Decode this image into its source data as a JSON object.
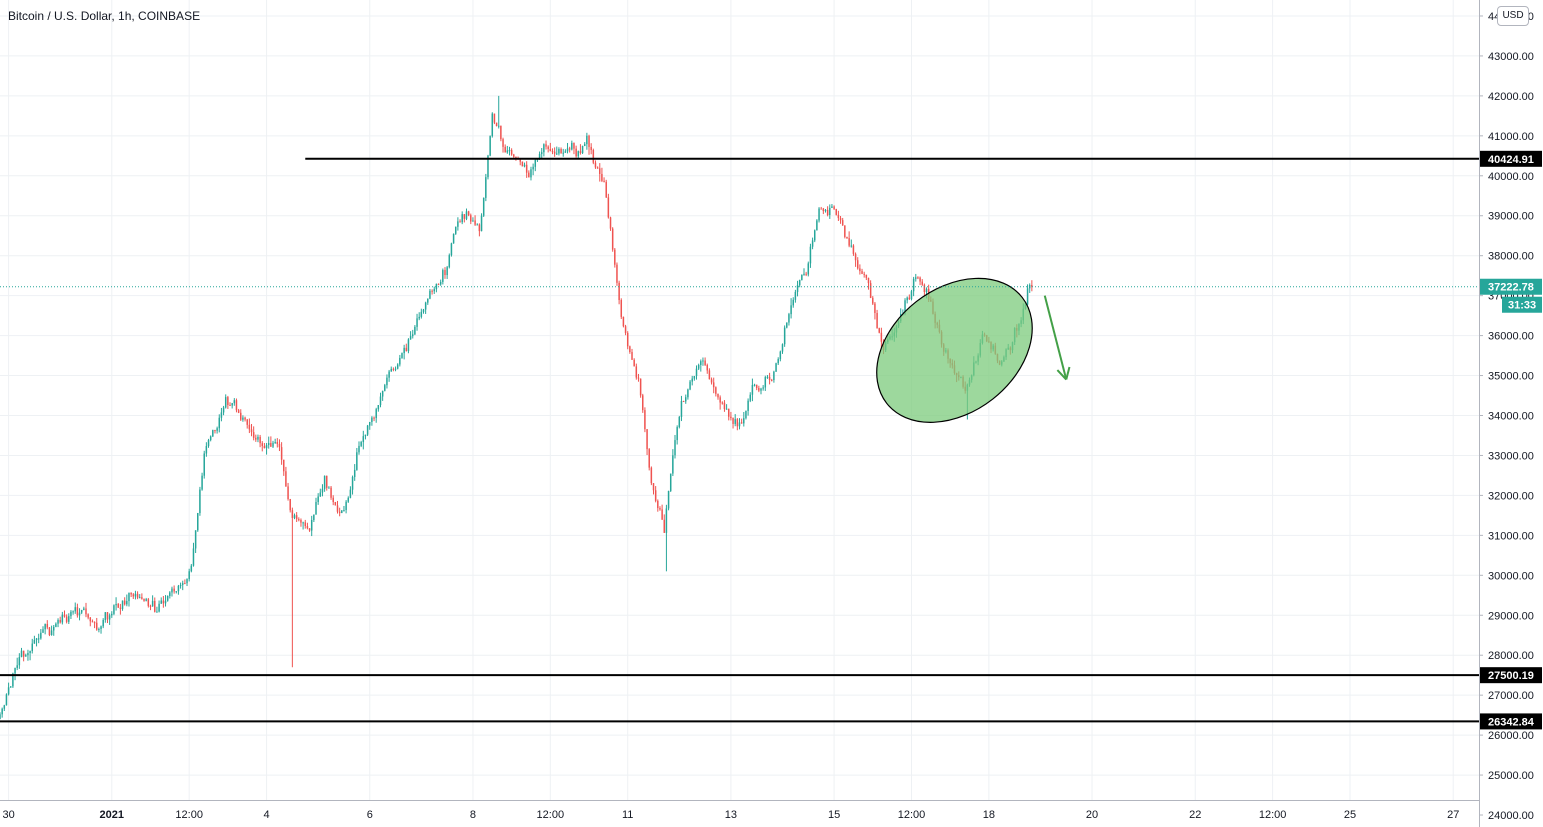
{
  "header": {
    "title": "Bitcoin / U.S. Dollar, 1h, COINBASE",
    "currency": "USD"
  },
  "colors": {
    "up": "#26a69a",
    "down": "#ef5350",
    "grid": "#eef1f4",
    "axis_text": "#131722",
    "hline": "#000000",
    "ellipse_fill": "#7ccb7c",
    "arrow": "#43a047",
    "price_line": "#26a69a"
  },
  "chart_data": {
    "type": "candlestick",
    "title": "Bitcoin / U.S. Dollar, 1h, COINBASE",
    "y_axis": {
      "ylim": [
        23700,
        44400
      ],
      "ticks": [
        24000,
        25000,
        26000,
        27000,
        28000,
        29000,
        30000,
        31000,
        32000,
        33000,
        34000,
        35000,
        36000,
        37000,
        38000,
        39000,
        40000,
        41000,
        42000,
        43000,
        44000
      ],
      "tick_labels": [
        "24000.00",
        "25000.00",
        "26000.00",
        "27000.00",
        "28000.00",
        "29000.00",
        "30000.00",
        "31000.00",
        "32000.00",
        "33000.00",
        "34000.00",
        "35000.00",
        "36000.00",
        "37000.00",
        "38000.00",
        "39000.00",
        "40000.00",
        "41000.00",
        "42000.00",
        "43000.00",
        "44000.00"
      ]
    },
    "x_axis": {
      "start": "2020-12-29T20:00",
      "end": "2021-01-27T12:00",
      "ticks": [
        {
          "t": "2020-12-30T00:00",
          "label": "30"
        },
        {
          "t": "2021-01-01T00:00",
          "label": "2021"
        },
        {
          "t": "2021-01-02T12:00",
          "label": "12:00"
        },
        {
          "t": "2021-01-04T00:00",
          "label": "4"
        },
        {
          "t": "2021-01-06T00:00",
          "label": "6"
        },
        {
          "t": "2021-01-08T00:00",
          "label": "8"
        },
        {
          "t": "2021-01-09T12:00",
          "label": "12:00"
        },
        {
          "t": "2021-01-11T00:00",
          "label": "11"
        },
        {
          "t": "2021-01-13T00:00",
          "label": "13"
        },
        {
          "t": "2021-01-15T00:00",
          "label": "15"
        },
        {
          "t": "2021-01-16T12:00",
          "label": "12:00"
        },
        {
          "t": "2021-01-18T00:00",
          "label": "18"
        },
        {
          "t": "2021-01-20T00:00",
          "label": "20"
        },
        {
          "t": "2021-01-22T00:00",
          "label": "22"
        },
        {
          "t": "2021-01-23T12:00",
          "label": "12:00"
        },
        {
          "t": "2021-01-25T00:00",
          "label": "25"
        },
        {
          "t": "2021-01-27T00:00",
          "label": "27"
        }
      ]
    },
    "series": [
      {
        "path": [
          [
            "2020-12-29T20:00",
            26400
          ],
          [
            "2020-12-30T04:00",
            27800
          ],
          [
            "2020-12-30T12:00",
            28300
          ],
          [
            "2020-12-31T00:00",
            28900
          ],
          [
            "2020-12-31T08:00",
            29200
          ],
          [
            "2020-12-31T20:00",
            28700
          ],
          [
            "2021-01-01T04:00",
            29200
          ],
          [
            "2021-01-01T12:00",
            29400
          ],
          [
            "2021-01-01T20:00",
            29100
          ],
          [
            "2021-01-02T06:00",
            29600
          ],
          [
            "2021-01-02T14:00",
            30200
          ],
          [
            "2021-01-02T20:00",
            32900
          ],
          [
            "2021-01-03T06:00",
            34300
          ],
          [
            "2021-01-03T14:00",
            34100
          ],
          [
            "2021-01-03T22:00",
            33100
          ],
          [
            "2021-01-04T06:00",
            33300
          ],
          [
            "2021-01-04T12:00",
            31600
          ],
          [
            "2021-01-04T20:00",
            31100
          ],
          [
            "2021-01-05T04:00",
            32200
          ],
          [
            "2021-01-05T12:00",
            31300
          ],
          [
            "2021-01-05T20:00",
            33200
          ],
          [
            "2021-01-06T06:00",
            34500
          ],
          [
            "2021-01-06T16:00",
            35500
          ],
          [
            "2021-01-07T02:00",
            36800
          ],
          [
            "2021-01-07T12:00",
            37600
          ],
          [
            "2021-01-07T20:00",
            39200
          ],
          [
            "2021-01-08T04:00",
            38800
          ],
          [
            "2021-01-08T10:00",
            41300
          ],
          [
            "2021-01-08T18:00",
            40500
          ],
          [
            "2021-01-09T02:00",
            40100
          ],
          [
            "2021-01-09T10:00",
            40700
          ],
          [
            "2021-01-09T20:00",
            40600
          ],
          [
            "2021-01-10T06:00",
            40800
          ],
          [
            "2021-01-10T14:00",
            39800
          ],
          [
            "2021-01-10T22:00",
            36300
          ],
          [
            "2021-01-11T06:00",
            34900
          ],
          [
            "2021-01-11T12:00",
            32500
          ],
          [
            "2021-01-11T18:00",
            31200
          ],
          [
            "2021-01-12T02:00",
            34500
          ],
          [
            "2021-01-12T12:00",
            35400
          ],
          [
            "2021-01-12T20:00",
            34200
          ],
          [
            "2021-01-13T04:00",
            33700
          ],
          [
            "2021-01-13T12:00",
            34700
          ],
          [
            "2021-01-13T20:00",
            34900
          ],
          [
            "2021-01-14T04:00",
            36600
          ],
          [
            "2021-01-14T12:00",
            37700
          ],
          [
            "2021-01-14T18:00",
            39200
          ],
          [
            "2021-01-15T00:00",
            39300
          ],
          [
            "2021-01-15T08:00",
            38200
          ],
          [
            "2021-01-15T16:00",
            37300
          ],
          [
            "2021-01-16T00:00",
            35700
          ],
          [
            "2021-01-16T08:00",
            36500
          ],
          [
            "2021-01-16T16:00",
            37600
          ],
          [
            "2021-01-17T00:00",
            36300
          ],
          [
            "2021-01-17T08:00",
            35300
          ],
          [
            "2021-01-17T14:00",
            34600
          ],
          [
            "2021-01-17T22:00",
            35900
          ],
          [
            "2021-01-18T06:00",
            35400
          ],
          [
            "2021-01-18T14:00",
            36200
          ],
          [
            "2021-01-18T20:00",
            37223
          ]
        ],
        "spikes": [
          [
            "2021-01-04T12:00",
            27700
          ],
          [
            "2021-01-11T18:00",
            30100
          ],
          [
            "2021-01-08T12:00",
            42000
          ],
          [
            "2021-01-17T14:00",
            33900
          ]
        ]
      }
    ],
    "horizontal_lines": [
      {
        "value": 40424.91,
        "label": "40424.91",
        "start": "2021-01-04T18:00"
      },
      {
        "value": 27500.19,
        "label": "27500.19",
        "start": "2020-12-29T20:00"
      },
      {
        "value": 26342.84,
        "label": "26342.84",
        "start": "2020-12-29T20:00"
      }
    ],
    "last_price": {
      "value": 37222.78,
      "label": "37222.78",
      "countdown": "31:33"
    },
    "annotations": {
      "ellipse": {
        "center_t": "2021-01-17T08:00",
        "center_v": 35630,
        "rx_hours": 40,
        "ry": 1550,
        "rotate_deg": -38
      },
      "arrow": {
        "from_t": "2021-01-19T02:00",
        "from_v": 37000,
        "to_t": "2021-01-19T12:00",
        "to_v": 34900
      }
    },
    "grid": true
  }
}
